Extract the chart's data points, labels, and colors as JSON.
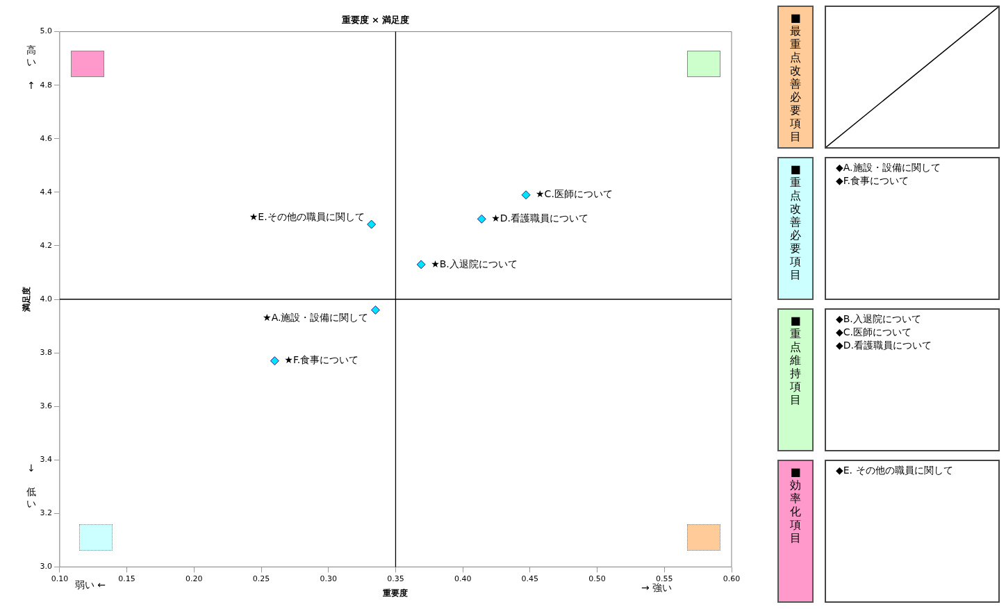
{
  "chart_data": [
    {
      "type": "scatter",
      "title": "重要度 × 満足度",
      "xlabel": "重要度",
      "ylabel": "満足度",
      "x": [
        0.335,
        0.369,
        0.447,
        0.414,
        0.332,
        0.26
      ],
      "values": [
        3.96,
        4.13,
        4.39,
        4.3,
        4.28,
        3.77
      ],
      "color": "#00e5ff",
      "marker": "diamond",
      "grid": false,
      "legend": false,
      "xlim": [
        0.1,
        0.6
      ],
      "xticks": [
        {
          "value": 0.1,
          "label": "0.10"
        },
        {
          "value": 0.15,
          "label": "0.15"
        },
        {
          "value": 0.2,
          "label": "0.20"
        },
        {
          "value": 0.25,
          "label": "0.25"
        },
        {
          "value": 0.3,
          "label": "0.30"
        },
        {
          "value": 0.35,
          "label": "0.35"
        },
        {
          "value": 0.4,
          "label": "0.40"
        },
        {
          "value": 0.45,
          "label": "0.45"
        },
        {
          "value": 0.5,
          "label": "0.50"
        },
        {
          "value": 0.55,
          "label": "0.55"
        },
        {
          "value": 0.6,
          "label": "0.60"
        }
      ],
      "ylim": [
        3.0,
        5.0
      ],
      "yticks": [
        {
          "value": 3.0,
          "label": "3.0"
        },
        {
          "value": 3.2,
          "label": "3.2"
        },
        {
          "value": 3.4,
          "label": "3.4"
        },
        {
          "value": 3.6,
          "label": "3.6"
        },
        {
          "value": 3.8,
          "label": "3.8"
        },
        {
          "value": 4.0,
          "label": "4.0"
        },
        {
          "value": 4.2,
          "label": "4.2"
        },
        {
          "value": 4.4,
          "label": "4.4"
        },
        {
          "value": 4.6,
          "label": "4.6"
        },
        {
          "value": 4.8,
          "label": "4.8"
        },
        {
          "value": 5.0,
          "label": "5.0"
        }
      ],
      "ref_lines": [
        {
          "axis": "x",
          "value": 0.35,
          "color": "#000000"
        },
        {
          "axis": "y",
          "value": 4.0,
          "color": "#000000"
        }
      ],
      "annotations": [
        "高い ↑",
        "↓ 低い",
        "弱い ←",
        "→ 強い",
        {
          "text": "★A.施設・設備に関して",
          "x": 0.335,
          "y": 3.96
        },
        {
          "text": "★B.入退院について",
          "x": 0.369,
          "y": 4.13
        },
        {
          "text": "★C.医師について",
          "x": 0.447,
          "y": 4.39
        },
        {
          "text": "★D.看護職員について",
          "x": 0.414,
          "y": 4.3
        },
        {
          "text": "★E.その他の職員に関して",
          "x": 0.332,
          "y": 4.28
        },
        {
          "text": "★F.食事について",
          "x": 0.26,
          "y": 3.77
        }
      ]
    },
    {
      "type": "other",
      "title": "■最重点改善必要項目",
      "color": "#ffcc99"
    },
    {
      "type": "other",
      "title": "■重点改善必要項目",
      "color": "#ccffff",
      "annotations": [
        "◆A.施設・設備に関して",
        "◆F.食事について"
      ]
    },
    {
      "type": "other",
      "title": "■重点維持項目",
      "color": "#ccffcc",
      "annotations": [
        "◆B.入退院について",
        "◆C.医師について",
        "◆D.看護職員について"
      ]
    },
    {
      "type": "other",
      "title": "■効率化項目",
      "color": "#ff99cc",
      "annotations": [
        "◆E. その他の職員に関して"
      ]
    }
  ]
}
